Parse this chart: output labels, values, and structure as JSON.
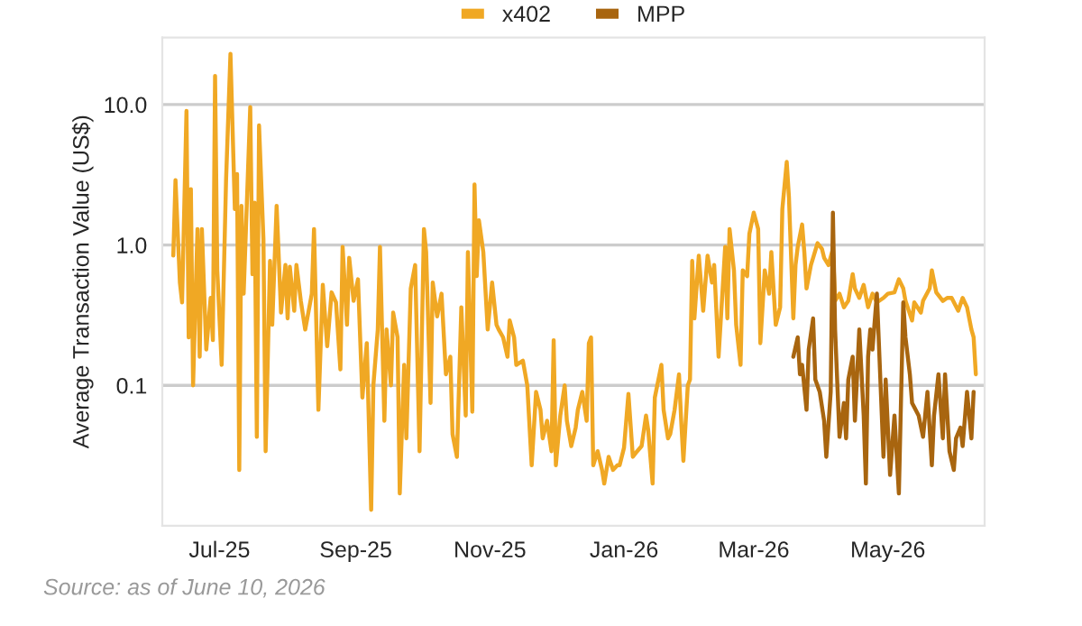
{
  "chart_data": {
    "type": "line",
    "ylabel": "Average Transaction Value (US$)",
    "log": "y",
    "ylim": [
      0.01,
      30
    ],
    "yticks": [
      {
        "value": 0.1,
        "label": "0.1"
      },
      {
        "value": 1,
        "label": "1.0"
      },
      {
        "value": 10,
        "label": "10.0"
      }
    ],
    "xlim": [
      "2025-06-05",
      "2026-06-14"
    ],
    "xticks": [
      {
        "value": "2025-07-01",
        "label": "Jul-25"
      },
      {
        "value": "2025-09-01",
        "label": "Sep-25"
      },
      {
        "value": "2025-11-01",
        "label": "Nov-25"
      },
      {
        "value": "2026-01-01",
        "label": "Jan-26"
      },
      {
        "value": "2026-03-01",
        "label": "Mar-26"
      },
      {
        "value": "2026-05-01",
        "label": "May-26"
      }
    ],
    "grid": "y",
    "legend": "top",
    "marker": "none",
    "line_style": "solid",
    "annotations": [
      "Source: as of June 10, 2026"
    ],
    "series": [
      {
        "name": "x402",
        "color": "#f0a824",
        "x": [
          "2025-06-10",
          "2025-06-11",
          "2025-06-13",
          "2025-06-14",
          "2025-06-16",
          "2025-06-17",
          "2025-06-18",
          "2025-06-19",
          "2025-06-21",
          "2025-06-22",
          "2025-06-23",
          "2025-06-25",
          "2025-06-27",
          "2025-06-28",
          "2025-06-29",
          "2025-06-30",
          "2025-07-02",
          "2025-07-04",
          "2025-07-06",
          "2025-07-08",
          "2025-07-09",
          "2025-07-10",
          "2025-07-11",
          "2025-07-12",
          "2025-07-15",
          "2025-07-16",
          "2025-07-17",
          "2025-07-18",
          "2025-07-19",
          "2025-07-21",
          "2025-07-22",
          "2025-07-24",
          "2025-07-25",
          "2025-07-27",
          "2025-07-29",
          "2025-07-31",
          "2025-08-01",
          "2025-08-02",
          "2025-08-04",
          "2025-08-05",
          "2025-08-07",
          "2025-08-09",
          "2025-08-12",
          "2025-08-13",
          "2025-08-15",
          "2025-08-17",
          "2025-08-19",
          "2025-08-21",
          "2025-08-23",
          "2025-08-25",
          "2025-08-26",
          "2025-08-28",
          "2025-08-29",
          "2025-08-31",
          "2025-09-02",
          "2025-09-04",
          "2025-09-06",
          "2025-09-08",
          "2025-09-09",
          "2025-09-11",
          "2025-09-12",
          "2025-09-14",
          "2025-09-15",
          "2025-09-17",
          "2025-09-18",
          "2025-09-20",
          "2025-09-21",
          "2025-09-23",
          "2025-09-24",
          "2025-09-26",
          "2025-09-28",
          "2025-09-30",
          "2025-10-02",
          "2025-10-03",
          "2025-10-05",
          "2025-10-06",
          "2025-10-08",
          "2025-10-10",
          "2025-10-12",
          "2025-10-14",
          "2025-10-15",
          "2025-10-17",
          "2025-10-19",
          "2025-10-21",
          "2025-10-22",
          "2025-10-24",
          "2025-10-25",
          "2025-10-26",
          "2025-10-27",
          "2025-10-29",
          "2025-10-31",
          "2025-11-02",
          "2025-11-04",
          "2025-11-05",
          "2025-11-07",
          "2025-11-09",
          "2025-11-10",
          "2025-11-12",
          "2025-11-13",
          "2025-11-16",
          "2025-11-18",
          "2025-11-20",
          "2025-11-22",
          "2025-11-24",
          "2025-11-25",
          "2025-11-27",
          "2025-11-29",
          "2025-11-30",
          "2025-12-01",
          "2025-12-03",
          "2025-12-05",
          "2025-12-06",
          "2025-12-08",
          "2025-12-10",
          "2025-12-11",
          "2025-12-13",
          "2025-12-15",
          "2025-12-16",
          "2025-12-17",
          "2025-12-18",
          "2025-12-20",
          "2025-12-22",
          "2025-12-23",
          "2025-12-25",
          "2025-12-27",
          "2025-12-29",
          "2025-12-30",
          "2026-01-01",
          "2026-01-03",
          "2026-01-05",
          "2026-01-07",
          "2026-01-09",
          "2026-01-11",
          "2026-01-12",
          "2026-01-14",
          "2026-01-15",
          "2026-01-18",
          "2026-01-19",
          "2026-01-21",
          "2026-01-22",
          "2026-01-24",
          "2026-01-26",
          "2026-01-27",
          "2026-01-28",
          "2026-01-30",
          "2026-01-31",
          "2026-02-01",
          "2026-02-02",
          "2026-02-04",
          "2026-02-06",
          "2026-02-08",
          "2026-02-10",
          "2026-02-11",
          "2026-02-13",
          "2026-02-16",
          "2026-02-17",
          "2026-02-18",
          "2026-02-20",
          "2026-02-21",
          "2026-02-23",
          "2026-02-24",
          "2026-02-26",
          "2026-02-27",
          "2026-03-01",
          "2026-03-03",
          "2026-03-04",
          "2026-03-06",
          "2026-03-08",
          "2026-03-09",
          "2026-03-11",
          "2026-03-13",
          "2026-03-14",
          "2026-03-16",
          "2026-03-17",
          "2026-03-19",
          "2026-03-20",
          "2026-03-21",
          "2026-03-23",
          "2026-03-24",
          "2026-03-25",
          "2026-03-27",
          "2026-03-28",
          "2026-03-30",
          "2026-04-01",
          "2026-04-02",
          "2026-04-04",
          "2026-04-06",
          "2026-04-07",
          "2026-04-09",
          "2026-04-11",
          "2026-04-13",
          "2026-04-15",
          "2026-04-16",
          "2026-04-18",
          "2026-04-20",
          "2026-04-22",
          "2026-04-24",
          "2026-04-26",
          "2026-04-29",
          "2026-05-01",
          "2026-05-04",
          "2026-05-06",
          "2026-05-08",
          "2026-05-09",
          "2026-05-12",
          "2026-05-13",
          "2026-05-16",
          "2026-05-17",
          "2026-05-20",
          "2026-05-21",
          "2026-05-23",
          "2026-05-26",
          "2026-05-28",
          "2026-05-30",
          "2026-06-02",
          "2026-06-04",
          "2026-06-06",
          "2026-06-08",
          "2026-06-09",
          "2026-06-10"
        ],
        "values": [
          0.84,
          2.9,
          0.54,
          0.39,
          9.0,
          0.22,
          2.5,
          0.1,
          1.3,
          0.16,
          1.3,
          0.18,
          0.42,
          0.21,
          16,
          0.66,
          0.14,
          2.9,
          23,
          1.8,
          3.2,
          0.025,
          1.9,
          0.45,
          9.6,
          0.62,
          2.0,
          0.043,
          7.1,
          1.1,
          0.034,
          0.77,
          0.27,
          1.9,
          0.33,
          0.72,
          0.3,
          0.7,
          0.34,
          0.72,
          0.4,
          0.25,
          0.45,
          1.3,
          0.067,
          0.52,
          0.19,
          0.46,
          0.39,
          0.13,
          0.97,
          0.27,
          0.81,
          0.4,
          0.57,
          0.082,
          0.2,
          0.013,
          0.1,
          0.25,
          0.97,
          0.056,
          0.25,
          0.1,
          0.33,
          0.22,
          0.017,
          0.14,
          0.042,
          0.49,
          0.72,
          0.034,
          1.3,
          0.89,
          0.075,
          0.54,
          0.31,
          0.45,
          0.12,
          0.16,
          0.045,
          0.031,
          0.36,
          0.061,
          0.89,
          0.065,
          2.7,
          0.6,
          1.5,
          0.89,
          0.25,
          0.54,
          0.27,
          0.25,
          0.22,
          0.16,
          0.29,
          0.22,
          0.14,
          0.15,
          0.1,
          0.027,
          0.09,
          0.067,
          0.042,
          0.056,
          0.034,
          0.21,
          0.027,
          0.061,
          0.1,
          0.056,
          0.037,
          0.05,
          0.067,
          0.09,
          0.056,
          0.2,
          0.22,
          0.027,
          0.034,
          0.025,
          0.02,
          0.031,
          0.025,
          0.027,
          0.027,
          0.036,
          0.087,
          0.031,
          0.034,
          0.037,
          0.061,
          0.048,
          0.02,
          0.082,
          0.14,
          0.067,
          0.042,
          0.045,
          0.067,
          0.12,
          0.056,
          0.029,
          0.1,
          0.11,
          0.77,
          0.3,
          0.84,
          0.34,
          0.84,
          0.54,
          0.72,
          0.16,
          0.97,
          0.3,
          1.3,
          0.66,
          0.27,
          0.14,
          0.66,
          0.6,
          1.2,
          1.7,
          1.3,
          0.2,
          0.66,
          0.45,
          0.89,
          0.27,
          0.36,
          1.8,
          3.9,
          2.2,
          0.3,
          0.72,
          0.97,
          1.4,
          0.89,
          0.49,
          0.72,
          0.81,
          1.03,
          0.94,
          0.81,
          0.72,
          0.94,
          0.4,
          0.45,
          0.36,
          0.4,
          0.62,
          0.49,
          0.42,
          0.52,
          0.36,
          0.45,
          0.39,
          0.42,
          0.45,
          0.46,
          0.57,
          0.49,
          0.4,
          0.29,
          0.39,
          0.33,
          0.4,
          0.49,
          0.66,
          0.46,
          0.4,
          0.42,
          0.42,
          0.34,
          0.42,
          0.36,
          0.25,
          0.22,
          0.12
        ]
      },
      {
        "name": "MPP",
        "color": "#a8650f",
        "x": [
          "2026-03-19",
          "2026-03-21",
          "2026-03-22",
          "2026-03-23",
          "2026-03-25",
          "2026-03-26",
          "2026-03-28",
          "2026-03-29",
          "2026-03-31",
          "2026-04-02",
          "2026-04-03",
          "2026-04-05",
          "2026-04-06",
          "2026-04-07",
          "2026-04-09",
          "2026-04-11",
          "2026-04-12",
          "2026-04-13",
          "2026-04-15",
          "2026-04-16",
          "2026-04-18",
          "2026-04-20",
          "2026-04-21",
          "2026-04-22",
          "2026-04-23",
          "2026-04-24",
          "2026-04-26",
          "2026-04-29",
          "2026-04-30",
          "2026-05-02",
          "2026-05-04",
          "2026-05-06",
          "2026-05-08",
          "2026-05-09",
          "2026-05-11",
          "2026-05-12",
          "2026-05-15",
          "2026-05-17",
          "2026-05-19",
          "2026-05-21",
          "2026-05-22",
          "2026-05-24",
          "2026-05-26",
          "2026-05-27",
          "2026-05-29",
          "2026-05-31",
          "2026-06-01",
          "2026-06-03",
          "2026-06-04",
          "2026-06-06",
          "2026-06-08",
          "2026-06-09"
        ],
        "values": [
          0.16,
          0.22,
          0.12,
          0.14,
          0.067,
          0.18,
          0.3,
          0.11,
          0.09,
          0.056,
          0.031,
          0.09,
          1.7,
          0.25,
          0.043,
          0.075,
          0.042,
          0.11,
          0.16,
          0.056,
          0.25,
          0.061,
          0.02,
          0.16,
          0.25,
          0.18,
          0.45,
          0.031,
          0.11,
          0.023,
          0.061,
          0.017,
          0.39,
          0.22,
          0.12,
          0.075,
          0.061,
          0.043,
          0.09,
          0.027,
          0.061,
          0.12,
          0.042,
          0.12,
          0.034,
          0.025,
          0.042,
          0.05,
          0.037,
          0.09,
          0.042,
          0.09
        ]
      }
    ]
  }
}
